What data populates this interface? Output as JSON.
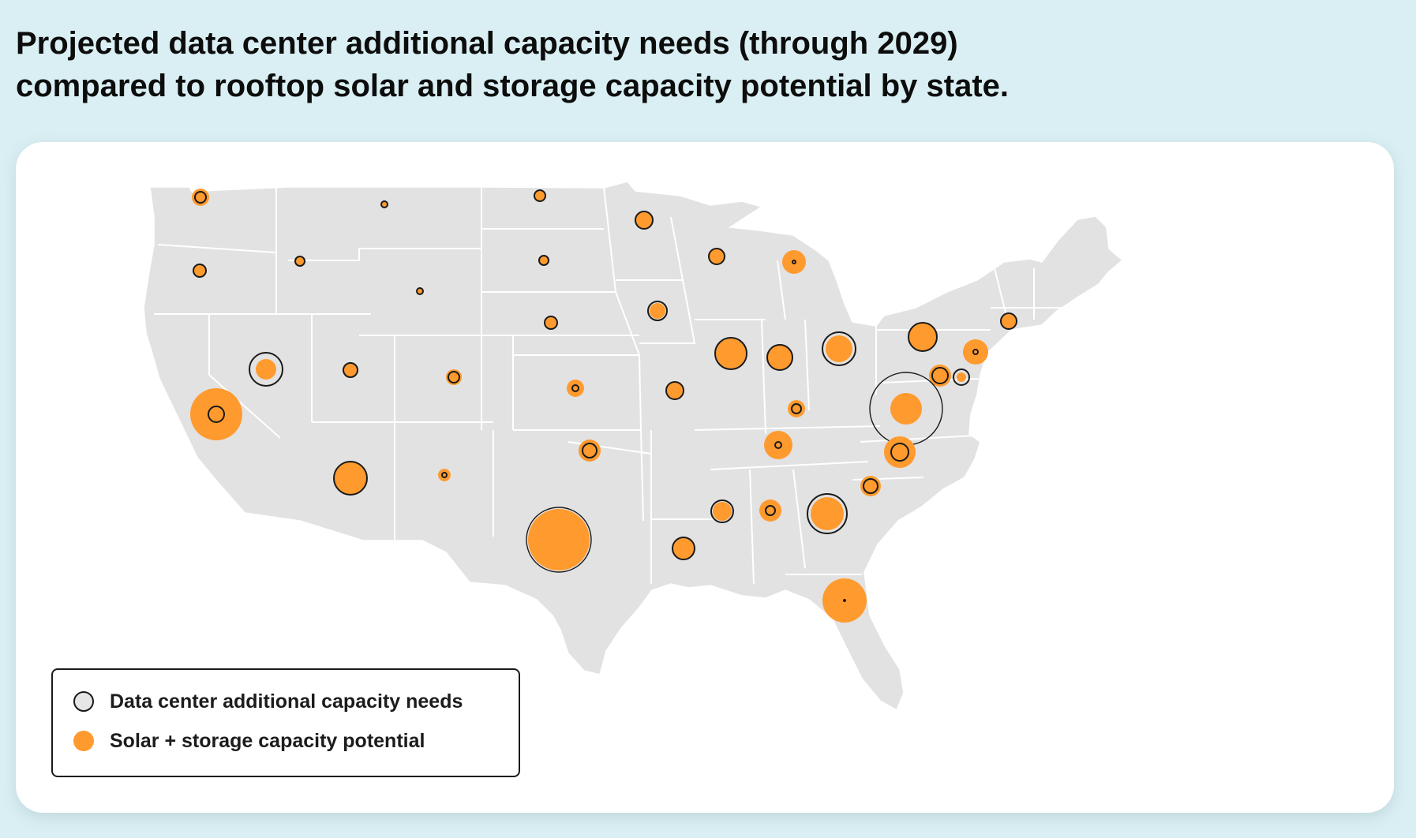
{
  "title": {
    "line1": "Projected data center additional capacity needs (through 2029)",
    "line2": "compared to rooftop solar and storage capacity potential by state."
  },
  "colors": {
    "page_background": "#daeff3",
    "land": "#e2e2e2",
    "state_border": "#ffffff",
    "solar": "#ff9a2e",
    "data_center_outline": "#1a1a1a"
  },
  "legend": {
    "items": [
      {
        "label": "Data center additional capacity needs",
        "marker": "hollow-circle"
      },
      {
        "label": "Solar + storage capacity potential",
        "marker": "orange-dot"
      }
    ]
  },
  "bubbles": [
    {
      "state": "WA",
      "solar": 11,
      "dc": 7
    },
    {
      "state": "OR",
      "solar": 8,
      "dc": 8
    },
    {
      "state": "ID",
      "solar": 6,
      "dc": 6
    },
    {
      "state": "MT",
      "solar": 4,
      "dc": 4
    },
    {
      "state": "WY",
      "solar": 4,
      "dc": 4
    },
    {
      "state": "ND",
      "solar": 7,
      "dc": 7
    },
    {
      "state": "SD",
      "solar": 6,
      "dc": 6
    },
    {
      "state": "MN",
      "solar": 11,
      "dc": 11
    },
    {
      "state": "WI",
      "solar": 10,
      "dc": 10
    },
    {
      "state": "MI",
      "solar": 15,
      "dc": 2
    },
    {
      "state": "IA",
      "solar": 10,
      "dc": 12
    },
    {
      "state": "NE",
      "solar": 8,
      "dc": 8
    },
    {
      "state": "NV",
      "solar": 13,
      "dc": 21
    },
    {
      "state": "UT",
      "solar": 9,
      "dc": 9
    },
    {
      "state": "CO",
      "solar": 10,
      "dc": 7
    },
    {
      "state": "KS",
      "solar": 11,
      "dc": 4
    },
    {
      "state": "MO",
      "solar": 11,
      "dc": 11
    },
    {
      "state": "IL",
      "solar": 19,
      "dc": 20
    },
    {
      "state": "IN",
      "solar": 16,
      "dc": 16
    },
    {
      "state": "OH",
      "solar": 17,
      "dc": 21
    },
    {
      "state": "PA",
      "solar": 18,
      "dc": 18
    },
    {
      "state": "NJ",
      "solar": 16,
      "dc": 3
    },
    {
      "state": "MD",
      "solar": 14,
      "dc": 10
    },
    {
      "state": "DE",
      "solar": 6,
      "dc": 10
    },
    {
      "state": "CT",
      "solar": 10,
      "dc": 10
    },
    {
      "state": "VA",
      "solar": 20,
      "dc": 46
    },
    {
      "state": "KY",
      "solar": 11,
      "dc": 6
    },
    {
      "state": "TN",
      "solar": 18,
      "dc": 4
    },
    {
      "state": "NC",
      "solar": 20,
      "dc": 11
    },
    {
      "state": "SC",
      "solar": 13,
      "dc": 9
    },
    {
      "state": "GA",
      "solar": 21,
      "dc": 25
    },
    {
      "state": "AL",
      "solar": 14,
      "dc": 6
    },
    {
      "state": "MS",
      "solar": 12,
      "dc": 14
    },
    {
      "state": "LA",
      "solar": 14,
      "dc": 14
    },
    {
      "state": "FL",
      "solar": 28,
      "dc": 1
    },
    {
      "state": "CA",
      "solar": 33,
      "dc": 10
    },
    {
      "state": "AZ",
      "solar": 21,
      "dc": 21
    },
    {
      "state": "NM",
      "solar": 8,
      "dc": 3
    },
    {
      "state": "OK",
      "solar": 14,
      "dc": 9
    },
    {
      "state": "TX",
      "solar": 39,
      "dc": 41
    }
  ]
}
